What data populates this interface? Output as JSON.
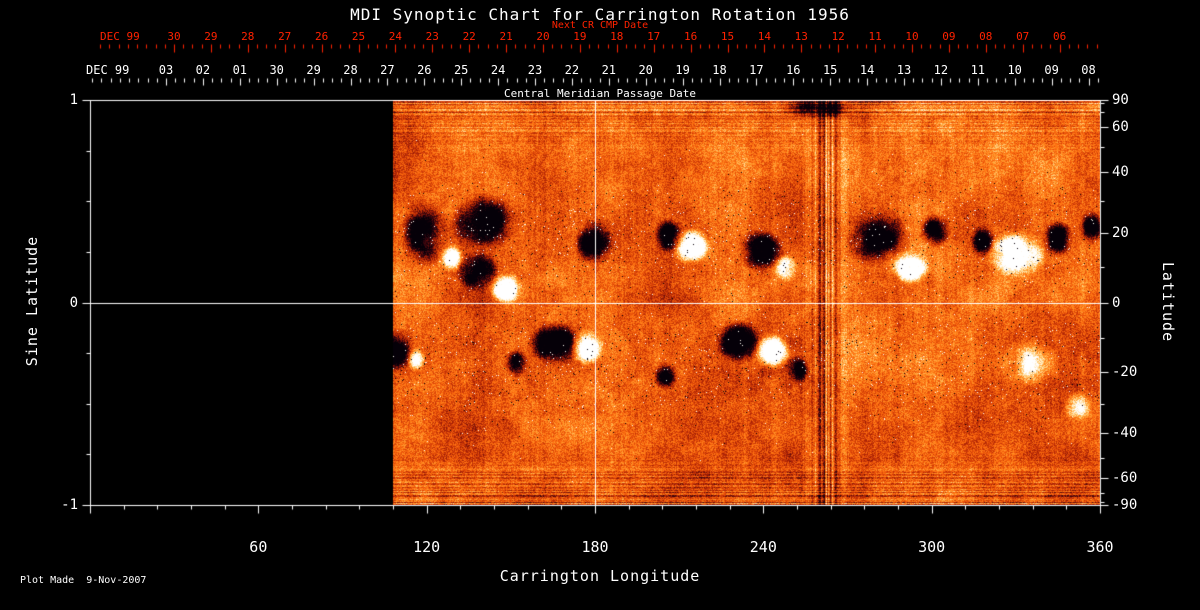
{
  "title": "MDI Synoptic Chart for Carrington Rotation 1956",
  "footer": {
    "plot_made": "Plot Made  9-Nov-2007"
  },
  "colors": {
    "background": "#000000",
    "foreground": "#ffffff",
    "next_cr_axis": "#ff2200",
    "grid": "#ffffff"
  },
  "axes": {
    "top_red": {
      "label": "Next CR CMP Date",
      "month_label": "DEC 99",
      "ticks": [
        "30",
        "29",
        "28",
        "27",
        "26",
        "25",
        "24",
        "23",
        "22",
        "21",
        "20",
        "19",
        "18",
        "17",
        "16",
        "15",
        "14",
        "13",
        "12",
        "11",
        "10",
        "09",
        "08",
        "07",
        "06"
      ]
    },
    "top_white": {
      "label": "Central Meridian Passage Date",
      "month_label": "DEC 99",
      "ticks": [
        "03",
        "02",
        "01",
        "30",
        "29",
        "28",
        "27",
        "26",
        "25",
        "24",
        "23",
        "22",
        "21",
        "20",
        "19",
        "18",
        "17",
        "16",
        "15",
        "14",
        "13",
        "12",
        "11",
        "10",
        "09",
        "08"
      ]
    },
    "bottom": {
      "label": "Carrington Longitude",
      "range": [
        0,
        360
      ],
      "ticks": [
        {
          "value": 60,
          "label": "60"
        },
        {
          "value": 120,
          "label": "120"
        },
        {
          "value": 180,
          "label": "180"
        },
        {
          "value": 240,
          "label": "240"
        },
        {
          "value": 300,
          "label": "300"
        },
        {
          "value": 360,
          "label": "360"
        }
      ]
    },
    "left": {
      "label": "Sine Latitude",
      "range": [
        -1,
        1
      ],
      "ticks": [
        {
          "value": 1,
          "label": "1"
        },
        {
          "value": 0,
          "label": "0"
        },
        {
          "value": -1,
          "label": "-1"
        }
      ]
    },
    "right": {
      "label": "Latitude",
      "ticks": [
        90,
        60,
        40,
        20,
        0,
        -20,
        -40,
        -60,
        -90
      ]
    }
  },
  "chart_data": {
    "type": "heatmap",
    "title": "MDI Synoptic Chart for Carrington Rotation 1956",
    "xlabel": "Carrington Longitude",
    "ylabel_left": "Sine Latitude",
    "ylabel_right": "Latitude",
    "x_range": [
      0,
      360
    ],
    "y_range_sine": [
      -1,
      1
    ],
    "gridlines": {
      "longitude": [
        180
      ],
      "sine_latitude": [
        0
      ]
    },
    "data_coverage_longitude": [
      108,
      360
    ],
    "no_data_region": "longitudes 0-108 are black (not yet observed)",
    "description": "Solar photospheric line-of-sight magnetic field synoptic map: orange granular background is quiet Sun, black patches are negative polarity and white patches are positive polarity active regions concentrated in two activity belts near +/-20 degrees latitude; vertical streak artifact near longitude 263.",
    "noise_seed": 1956,
    "stripe_artifact": {
      "lon_center": 263,
      "lon_sigma": 6
    },
    "palette": [
      [
        0.0,
        "#050008"
      ],
      [
        0.18,
        "#3a050e"
      ],
      [
        0.33,
        "#a51e06"
      ],
      [
        0.48,
        "#e24a08"
      ],
      [
        0.6,
        "#ff7212"
      ],
      [
        0.72,
        "#ff9e30"
      ],
      [
        0.84,
        "#ffd98f"
      ],
      [
        1.0,
        "#ffffff"
      ]
    ],
    "active_regions": [
      {
        "lon": 119,
        "slat": 0.34,
        "rlon": 9,
        "rslat": 0.2,
        "pol": -1,
        "str": 1.0
      },
      {
        "lon": 140,
        "slat": 0.4,
        "rlon": 13,
        "rslat": 0.16,
        "pol": -1,
        "str": 1.1
      },
      {
        "lon": 138,
        "slat": 0.16,
        "rlon": 9,
        "rslat": 0.12,
        "pol": -1,
        "str": 0.9
      },
      {
        "lon": 148,
        "slat": 0.07,
        "rlon": 7,
        "rslat": 0.09,
        "pol": 1,
        "str": 1.0
      },
      {
        "lon": 129,
        "slat": 0.22,
        "rlon": 5,
        "rslat": 0.08,
        "pol": 1,
        "str": 0.8
      },
      {
        "lon": 180,
        "slat": 0.3,
        "rlon": 8,
        "rslat": 0.13,
        "pol": -1,
        "str": 1.2
      },
      {
        "lon": 206,
        "slat": 0.33,
        "rlon": 6,
        "rslat": 0.1,
        "pol": -1,
        "str": 1.0
      },
      {
        "lon": 214,
        "slat": 0.28,
        "rlon": 8,
        "rslat": 0.1,
        "pol": 1,
        "str": 1.2
      },
      {
        "lon": 239,
        "slat": 0.26,
        "rlon": 9,
        "rslat": 0.12,
        "pol": -1,
        "str": 1.2
      },
      {
        "lon": 248,
        "slat": 0.17,
        "rlon": 5,
        "rslat": 0.08,
        "pol": 1,
        "str": 1.0
      },
      {
        "lon": 281,
        "slat": 0.32,
        "rlon": 13,
        "rslat": 0.16,
        "pol": -1,
        "str": 1.0
      },
      {
        "lon": 292,
        "slat": 0.18,
        "rlon": 8,
        "rslat": 0.1,
        "pol": 1,
        "str": 1.1
      },
      {
        "lon": 301,
        "slat": 0.36,
        "rlon": 6,
        "rslat": 0.1,
        "pol": -1,
        "str": 1.0
      },
      {
        "lon": 330,
        "slat": 0.24,
        "rlon": 12,
        "rslat": 0.13,
        "pol": 1,
        "str": 1.3
      },
      {
        "lon": 318,
        "slat": 0.3,
        "rlon": 5,
        "rslat": 0.09,
        "pol": -1,
        "str": 0.9
      },
      {
        "lon": 345,
        "slat": 0.32,
        "rlon": 6,
        "rslat": 0.1,
        "pol": -1,
        "str": 1.0
      },
      {
        "lon": 357,
        "slat": 0.38,
        "rlon": 5,
        "rslat": 0.1,
        "pol": -1,
        "str": 1.0
      },
      {
        "lon": 109,
        "slat": -0.23,
        "rlon": 7,
        "rslat": 0.12,
        "pol": -1,
        "str": 1.1
      },
      {
        "lon": 116,
        "slat": -0.28,
        "rlon": 4,
        "rslat": 0.07,
        "pol": 1,
        "str": 0.8
      },
      {
        "lon": 152,
        "slat": -0.3,
        "rlon": 5,
        "rslat": 0.08,
        "pol": -1,
        "str": 0.9
      },
      {
        "lon": 166,
        "slat": -0.2,
        "rlon": 11,
        "rslat": 0.12,
        "pol": -1,
        "str": 1.2
      },
      {
        "lon": 177,
        "slat": -0.22,
        "rlon": 7,
        "rslat": 0.1,
        "pol": 1,
        "str": 1.2
      },
      {
        "lon": 205,
        "slat": -0.36,
        "rlon": 5,
        "rslat": 0.08,
        "pol": -1,
        "str": 0.8
      },
      {
        "lon": 231,
        "slat": -0.19,
        "rlon": 9,
        "rslat": 0.12,
        "pol": -1,
        "str": 1.2
      },
      {
        "lon": 243,
        "slat": -0.24,
        "rlon": 8,
        "rslat": 0.1,
        "pol": 1,
        "str": 1.2
      },
      {
        "lon": 252,
        "slat": -0.33,
        "rlon": 5,
        "rslat": 0.08,
        "pol": -1,
        "str": 0.8
      },
      {
        "lon": 335,
        "slat": -0.3,
        "rlon": 12,
        "rslat": 0.14,
        "pol": 1,
        "str": 0.6
      },
      {
        "lon": 352,
        "slat": -0.52,
        "rlon": 6,
        "rslat": 0.1,
        "pol": 1,
        "str": 0.6
      },
      {
        "lon": 259,
        "slat": 0.96,
        "rlon": 15,
        "rslat": 0.06,
        "pol": -1,
        "str": 1.0
      }
    ]
  }
}
